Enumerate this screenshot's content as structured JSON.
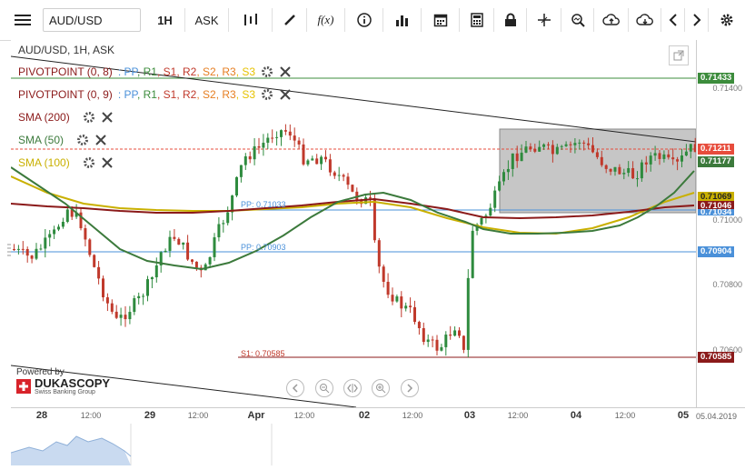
{
  "toolbar": {
    "symbol": "AUD/USD",
    "timeframe": "1H",
    "side": "ASK",
    "indicator_label": "f(x)"
  },
  "chart": {
    "header": "AUD/USD, 1H, ASK",
    "legend": [
      {
        "name": "PIVOTPOINT (0, 8)",
        "parts": [
          ": PP",
          ", R1",
          ", S1",
          ", R2",
          ", S2",
          ", R3",
          ", S3"
        ],
        "colors": [
          "#4a90d9",
          "#3c8c3c",
          "#c0392b",
          "#c0392b",
          "#e67e22",
          "#e67e22",
          "#e6c200"
        ]
      },
      {
        "name": "PIVOTPOINT (0, 9)",
        "parts": [
          ": PP",
          ", R1",
          ", S1",
          ", R2",
          ", S2",
          ", R3",
          ", S3"
        ],
        "colors": [
          "#4a90d9",
          "#3c8c3c",
          "#c0392b",
          "#c0392b",
          "#e67e22",
          "#e67e22",
          "#e6c200"
        ]
      },
      {
        "name": "SMA (200)",
        "color": "#8b1a1a"
      },
      {
        "name": "SMA (50)",
        "color": "#3c7a3c"
      },
      {
        "name": "SMA (100)",
        "color": "#c9b000"
      }
    ],
    "level_labels": [
      {
        "text": "PP: 0.71033",
        "color": "#4a90d9"
      },
      {
        "text": "PP: 0.70903",
        "color": "#4a90d9"
      },
      {
        "text": "S1: 0.70585",
        "color": "#c0392b"
      }
    ],
    "powered_by": "Powered by",
    "brand": "DUKASCOPY",
    "brand_sub": "Swiss Banking Group"
  },
  "yaxis": {
    "ticks": [
      "0.71400",
      "0.71000",
      "0.70800",
      "0.70600"
    ],
    "badges": [
      {
        "text": "0.71433",
        "color": "#3c8c3c"
      },
      {
        "text": "0.71211",
        "color": "#e74c3c"
      },
      {
        "text": "0.71177",
        "color": "#3c7a3c"
      },
      {
        "text": "0.71069",
        "color": "#c9b000"
      },
      {
        "text": "0.71046",
        "color": "#8b1a1a"
      },
      {
        "text": "0.71034",
        "color": "#4a90d9"
      },
      {
        "text": "0.70904",
        "color": "#4a90d9"
      },
      {
        "text": "0.70585",
        "color": "#8b1a1a"
      }
    ]
  },
  "xaxis": {
    "ticks": [
      {
        "label": "28",
        "major": true
      },
      {
        "label": "12:00",
        "major": false
      },
      {
        "label": "29",
        "major": true
      },
      {
        "label": "12:00",
        "major": false
      },
      {
        "label": "Apr",
        "major": true
      },
      {
        "label": "12:00",
        "major": false
      },
      {
        "label": "02",
        "major": true
      },
      {
        "label": "12:00",
        "major": false
      },
      {
        "label": "03",
        "major": true
      },
      {
        "label": "12:00",
        "major": false
      },
      {
        "label": "04",
        "major": true
      },
      {
        "label": "12:00",
        "major": false
      },
      {
        "label": "05",
        "major": true
      }
    ],
    "date_label": "05.04.2019"
  },
  "colors": {
    "bull": "#2e8b3e",
    "bear": "#c0392b",
    "rect_fill": "#b3b3b3"
  }
}
